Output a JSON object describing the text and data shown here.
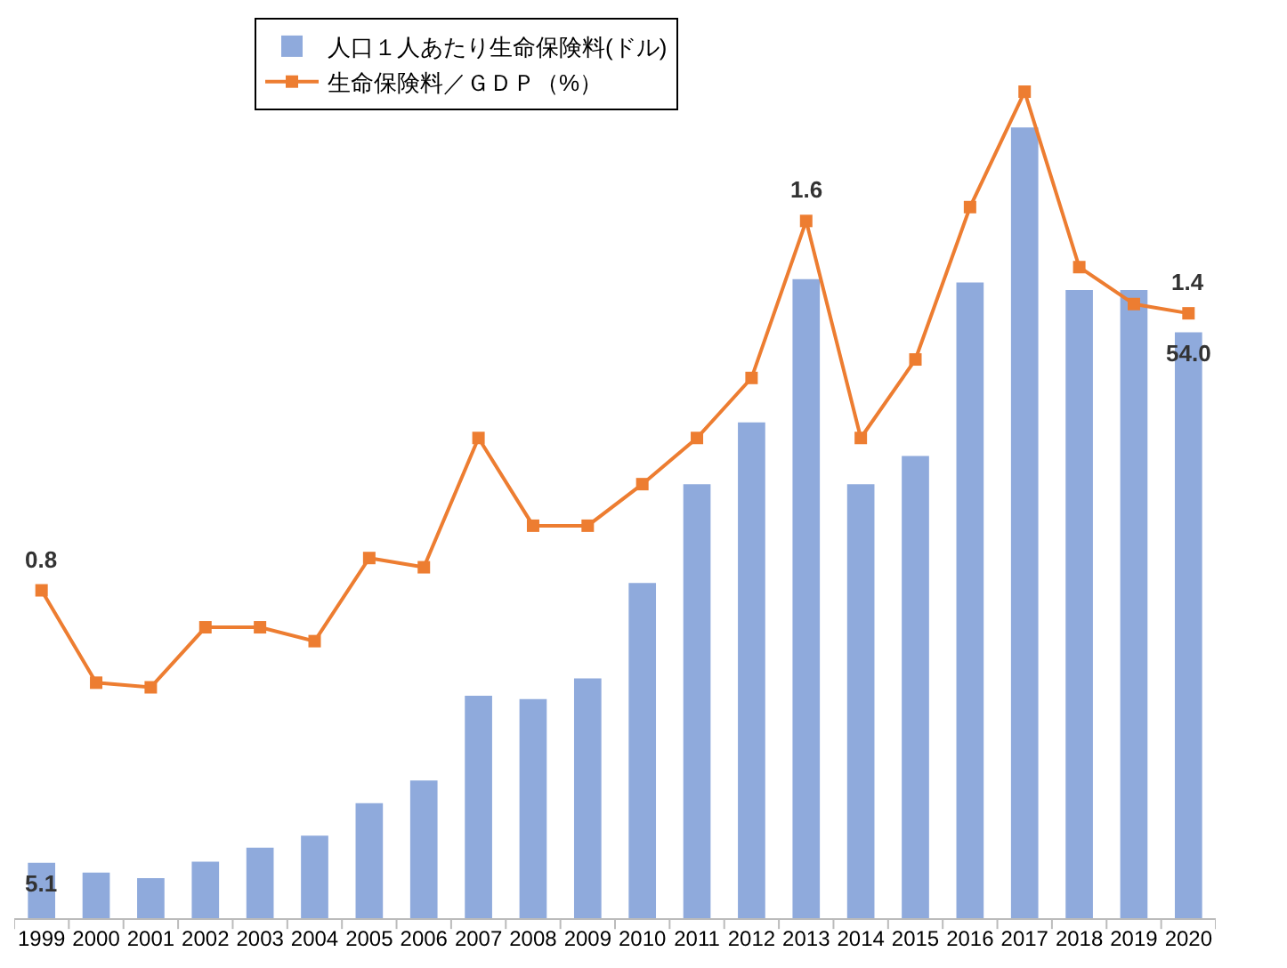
{
  "chart_data": {
    "type": "bar",
    "categories": [
      "1999",
      "2000",
      "2001",
      "2002",
      "2003",
      "2004",
      "2005",
      "2006",
      "2007",
      "2008",
      "2009",
      "2010",
      "2011",
      "2012",
      "2013",
      "2014",
      "2015",
      "2016",
      "2017",
      "2018",
      "2019",
      "2020"
    ],
    "series": [
      {
        "name": "人口１人あたり生命保険料(ドル)",
        "color": "#8faadc",
        "values": [
          5.1,
          4.2,
          3.7,
          5.2,
          6.5,
          7.6,
          10.6,
          12.7,
          20.5,
          20.2,
          22.1,
          30.9,
          40.0,
          45.7,
          58.9,
          40.0,
          42.6,
          58.6,
          72.9,
          57.9,
          57.9,
          54.0
        ],
        "value_labels": [
          "5.1",
          null,
          null,
          null,
          null,
          null,
          null,
          null,
          null,
          null,
          null,
          null,
          null,
          null,
          null,
          null,
          null,
          null,
          null,
          null,
          null,
          "54.0"
        ]
      },
      {
        "name": "生命保険料／ＧＤＰ（%）",
        "type": "line",
        "axis": "y2",
        "color": "#ed7d31",
        "values": [
          0.8,
          0.6,
          0.59,
          0.72,
          0.72,
          0.69,
          0.87,
          0.85,
          1.13,
          0.94,
          0.94,
          1.03,
          1.13,
          1.26,
          1.6,
          1.13,
          1.3,
          1.63,
          1.88,
          1.5,
          1.42,
          1.4
        ],
        "value_labels": [
          "0.8",
          null,
          null,
          null,
          null,
          null,
          null,
          null,
          null,
          null,
          null,
          null,
          null,
          null,
          "1.6",
          null,
          null,
          null,
          null,
          null,
          null,
          "1.4"
        ]
      }
    ],
    "ylim": [
      0,
      83
    ],
    "y2lim": [
      0.09,
      2.04
    ],
    "tick_labels": "x",
    "legend": "top",
    "marker": "square",
    "line_style": "solid"
  }
}
